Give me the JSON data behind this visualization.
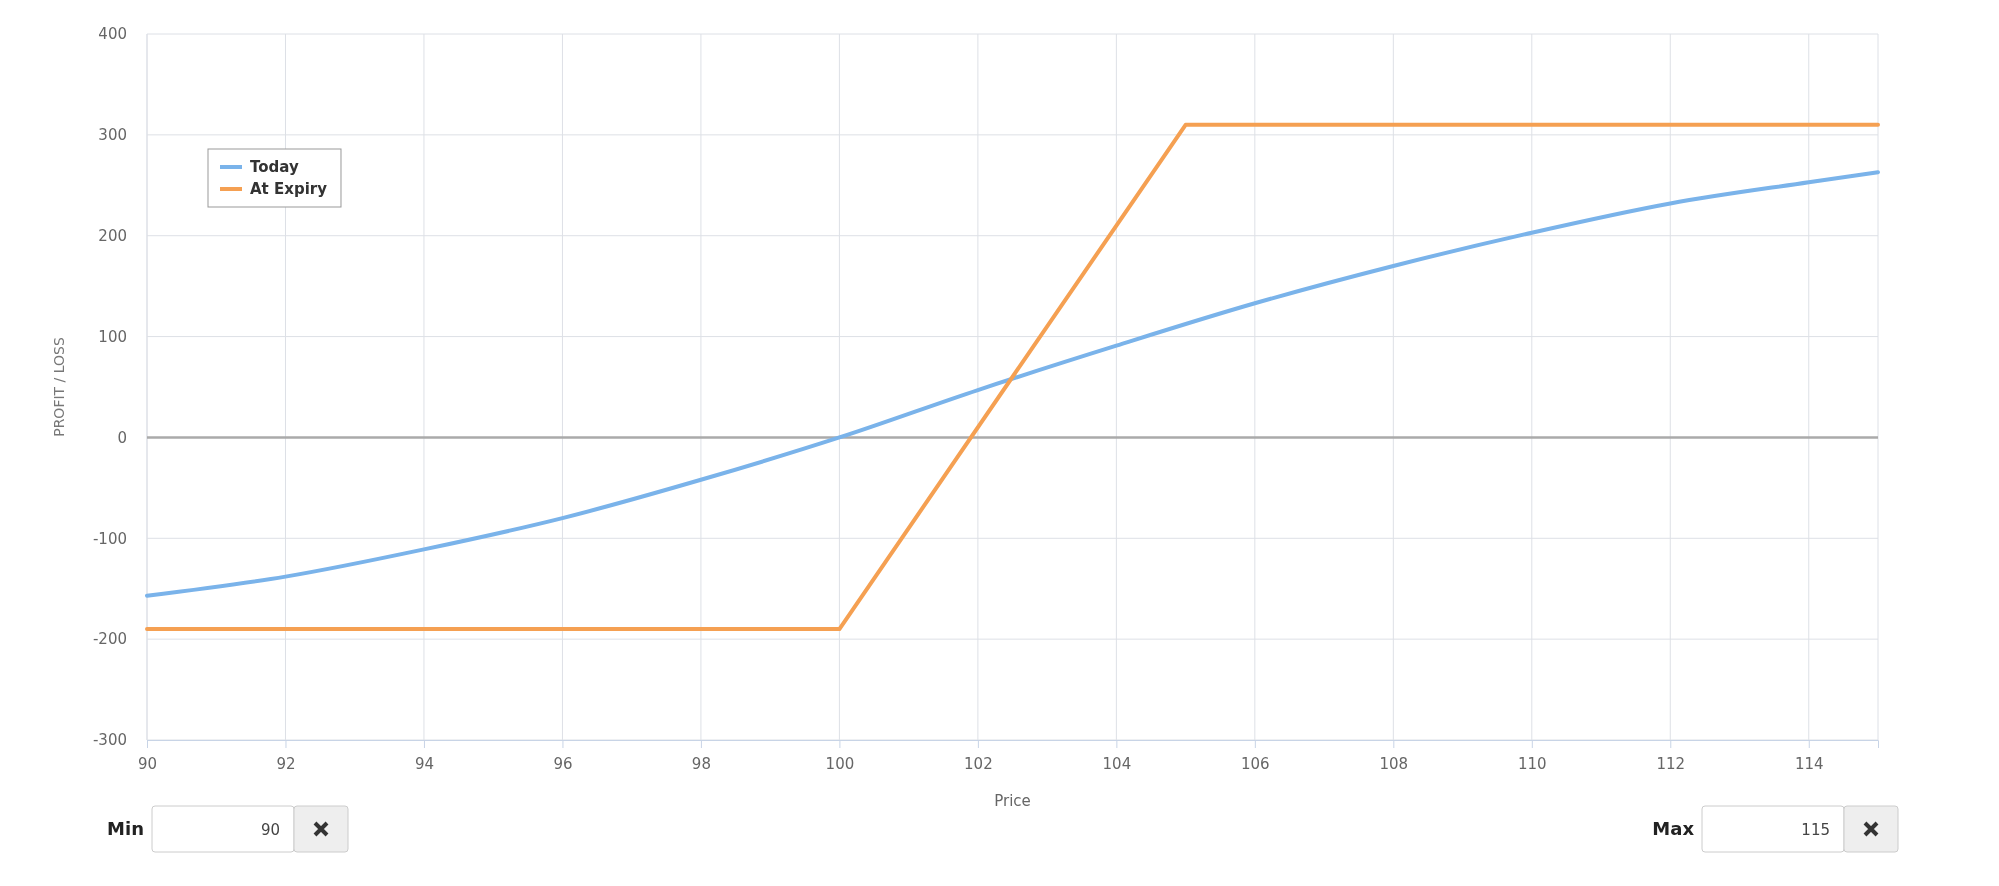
{
  "chart_data": {
    "type": "line",
    "xlabel": "Price",
    "ylabel": "PROFIT / LOSS",
    "xlim": [
      90,
      115
    ],
    "xticks": [
      90,
      92,
      94,
      96,
      98,
      100,
      102,
      104,
      106,
      108,
      110,
      112,
      114
    ],
    "ylim": [
      -300,
      400
    ],
    "yticks": [
      -300,
      -200,
      -100,
      0,
      100,
      200,
      300,
      400
    ],
    "grid": true,
    "legend": "top left",
    "marker": "none",
    "line_style": "solid",
    "ref_lines": [
      {
        "axis": "y",
        "value": 0,
        "color": "#aaaaaa"
      }
    ],
    "series": [
      {
        "name": "Today",
        "color": "#7ab3ea",
        "x": [
          90,
          92,
          94,
          96,
          98,
          100,
          102,
          104,
          106,
          108,
          110,
          112,
          114,
          115
        ],
        "values": [
          -157,
          -138,
          -111,
          -80,
          -42,
          0,
          47,
          91,
          133,
          170,
          203,
          232,
          253,
          263
        ]
      },
      {
        "name": "At Expiry",
        "color": "#f5a052",
        "x": [
          90,
          100,
          105,
          115
        ],
        "values": [
          -190,
          -190,
          310,
          310
        ]
      }
    ],
    "annotations": [
      "Min",
      "90",
      "Max",
      "115"
    ]
  }
}
